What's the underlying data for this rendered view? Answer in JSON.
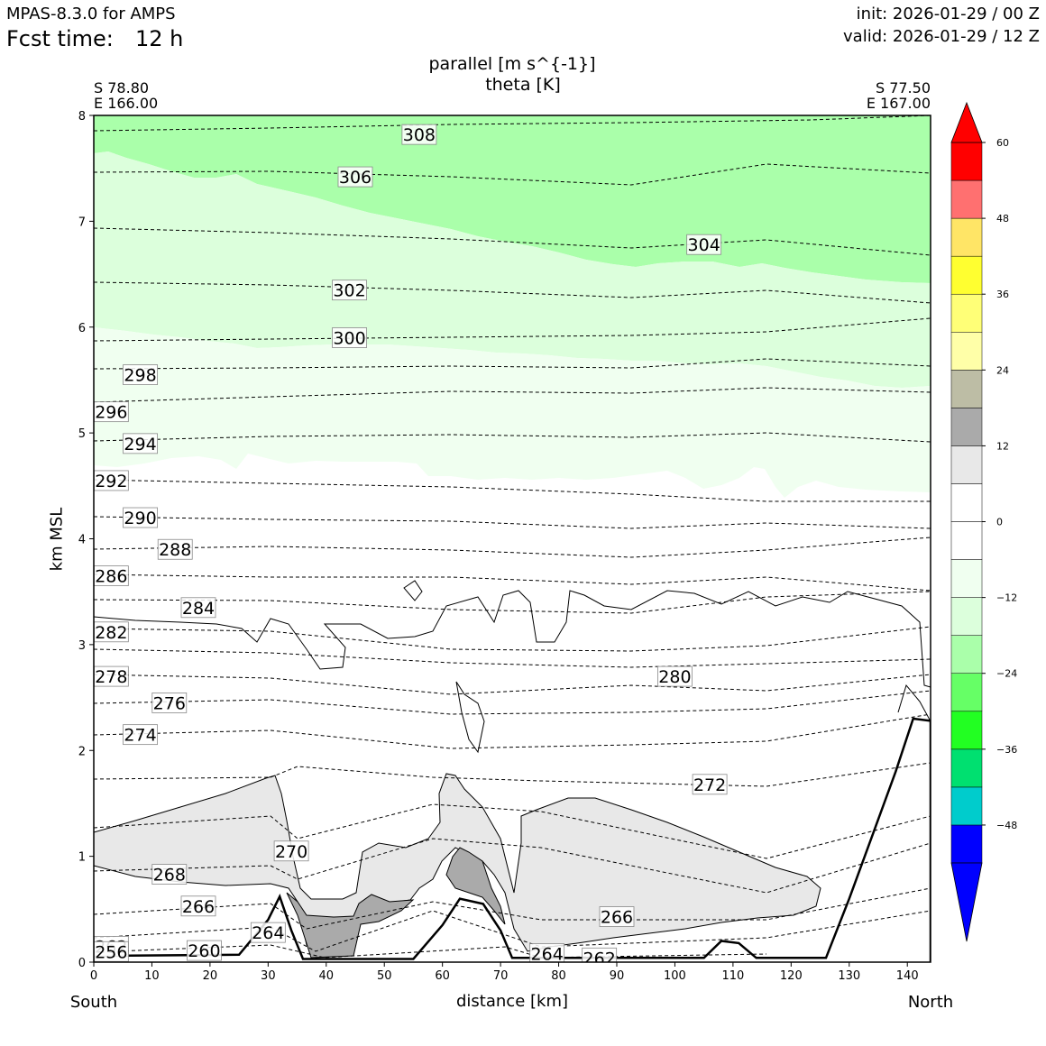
{
  "header": {
    "model": "MPAS-8.3.0 for AMPS",
    "fcst_label": "Fcst time:",
    "fcst_value": "12 h",
    "init": "init: 2026-01-29 / 00 Z",
    "valid": "valid: 2026-01-29 / 12 Z"
  },
  "endpoints": {
    "left_lat": "S 78.80",
    "left_lon": "E 166.00",
    "right_lat": "S 77.50",
    "right_lon": "E 167.00",
    "left_dir": "South",
    "right_dir": "North"
  },
  "colors": {
    "terrain_fill": "#ffffff",
    "terrain_line": "#000000",
    "neg_6_12": "#f0fff0",
    "neg_12_18": "#dcffdc",
    "neg_18_24": "#aaffaa",
    "pos_6_12": "#e8e8e8",
    "pos_12_18": "#aaaaaa"
  },
  "chart_data": {
    "type": "cross-section",
    "title": "parallel [m s^{-1}]",
    "subtitle": "theta [K]",
    "xlabel": "distance [km]",
    "ylabel": "km MSL",
    "xlim": [
      0,
      144
    ],
    "ylim": [
      0,
      8
    ],
    "x_ticks": [
      0,
      10,
      20,
      30,
      40,
      50,
      60,
      70,
      80,
      90,
      100,
      110,
      120,
      130,
      140
    ],
    "y_ticks": [
      0,
      1,
      2,
      3,
      4,
      5,
      6,
      7,
      8
    ],
    "terrain_km": [
      [
        0,
        0.06
      ],
      [
        25,
        0.07
      ],
      [
        30,
        0.4
      ],
      [
        32,
        0.62
      ],
      [
        34,
        0.3
      ],
      [
        36,
        0.03
      ],
      [
        55,
        0.03
      ],
      [
        60,
        0.35
      ],
      [
        63,
        0.6
      ],
      [
        67,
        0.55
      ],
      [
        70,
        0.3
      ],
      [
        72,
        0.04
      ],
      [
        105,
        0.04
      ],
      [
        108,
        0.2
      ],
      [
        111,
        0.18
      ],
      [
        114,
        0.04
      ],
      [
        126,
        0.04
      ],
      [
        130,
        0.6
      ],
      [
        134,
        1.2
      ],
      [
        138,
        1.8
      ],
      [
        141,
        2.3
      ],
      [
        144,
        2.28
      ]
    ],
    "shaded_regions": [
      {
        "band": "-6 to -12",
        "x": [
          0,
          144
        ],
        "top_km_left": 6.0,
        "top_km_right": 5.42,
        "bottom_km_left": 4.7,
        "bottom_km_right": 4.45
      },
      {
        "band": "-12 to -18",
        "top_km_left": 7.65,
        "top_km_right": 6.4,
        "bottom_km_left": 6.0,
        "bottom_km_right": 5.42
      },
      {
        "band": "-18 to -24",
        "top_km": 8.0,
        "bottom_km_left": 7.65,
        "bottom_km_right": 6.4
      },
      {
        "band": "6 to 12",
        "description": "low-level positive wind region"
      },
      {
        "band": "12 to 18",
        "description": "jets near 40 km and 65 km"
      }
    ],
    "theta_labels": [
      {
        "value": "308",
        "x": 56,
        "y": 7.82
      },
      {
        "value": "306",
        "x": 45,
        "y": 7.42
      },
      {
        "value": "304",
        "x": 105,
        "y": 6.78
      },
      {
        "value": "302",
        "x": 44,
        "y": 6.35
      },
      {
        "value": "300",
        "x": 44,
        "y": 5.9
      },
      {
        "value": "298",
        "x": 8,
        "y": 5.55
      },
      {
        "value": "296",
        "x": 3,
        "y": 5.2
      },
      {
        "value": "294",
        "x": 8,
        "y": 4.9
      },
      {
        "value": "292",
        "x": 3,
        "y": 4.55
      },
      {
        "value": "290",
        "x": 8,
        "y": 4.2
      },
      {
        "value": "288",
        "x": 14,
        "y": 3.9
      },
      {
        "value": "286",
        "x": 3,
        "y": 3.65
      },
      {
        "value": "284",
        "x": 18,
        "y": 3.35
      },
      {
        "value": "282",
        "x": 3,
        "y": 3.12
      },
      {
        "value": "280",
        "x": 100,
        "y": 2.7
      },
      {
        "value": "278",
        "x": 3,
        "y": 2.7
      },
      {
        "value": "276",
        "x": 13,
        "y": 2.45
      },
      {
        "value": "274",
        "x": 8,
        "y": 2.15
      },
      {
        "value": "272",
        "x": 106,
        "y": 1.68
      },
      {
        "value": "270",
        "x": 34,
        "y": 1.05
      },
      {
        "value": "268",
        "x": 13,
        "y": 0.83
      },
      {
        "value": "266",
        "x": 18,
        "y": 0.53
      },
      {
        "value": "266",
        "x": 90,
        "y": 0.43
      },
      {
        "value": "264",
        "x": 30,
        "y": 0.28
      },
      {
        "value": "264",
        "x": 78,
        "y": 0.08
      },
      {
        "value": "262",
        "x": 3,
        "y": 0.15
      },
      {
        "value": "262",
        "x": 87,
        "y": 0.04
      },
      {
        "value": "260",
        "x": 19,
        "y": 0.11
      },
      {
        "value": "256",
        "x": 3,
        "y": 0.1
      }
    ],
    "colorbar": {
      "ticks": [
        "60",
        "48",
        "36",
        "24",
        "12",
        "0",
        "−12",
        "−24",
        "−36",
        "−48"
      ],
      "levels": [
        -54,
        -48,
        -42,
        -36,
        -30,
        -24,
        -18,
        -12,
        -6,
        0,
        6,
        12,
        18,
        24,
        30,
        36,
        42,
        48,
        54,
        60
      ],
      "colors": [
        "#0000ff",
        "#00cccc",
        "#00e070",
        "#22ff22",
        "#66ff66",
        "#aaffaa",
        "#dcffdc",
        "#f0fff0",
        "#ffffff",
        "#ffffff",
        "#e8e8e8",
        "#aaaaaa",
        "#bdbda5",
        "#ffffa8",
        "#ffff77",
        "#ffff30",
        "#ffe566",
        "#ff7070",
        "#ff0000"
      ],
      "under": "#0000ff",
      "over": "#ff0000"
    }
  }
}
